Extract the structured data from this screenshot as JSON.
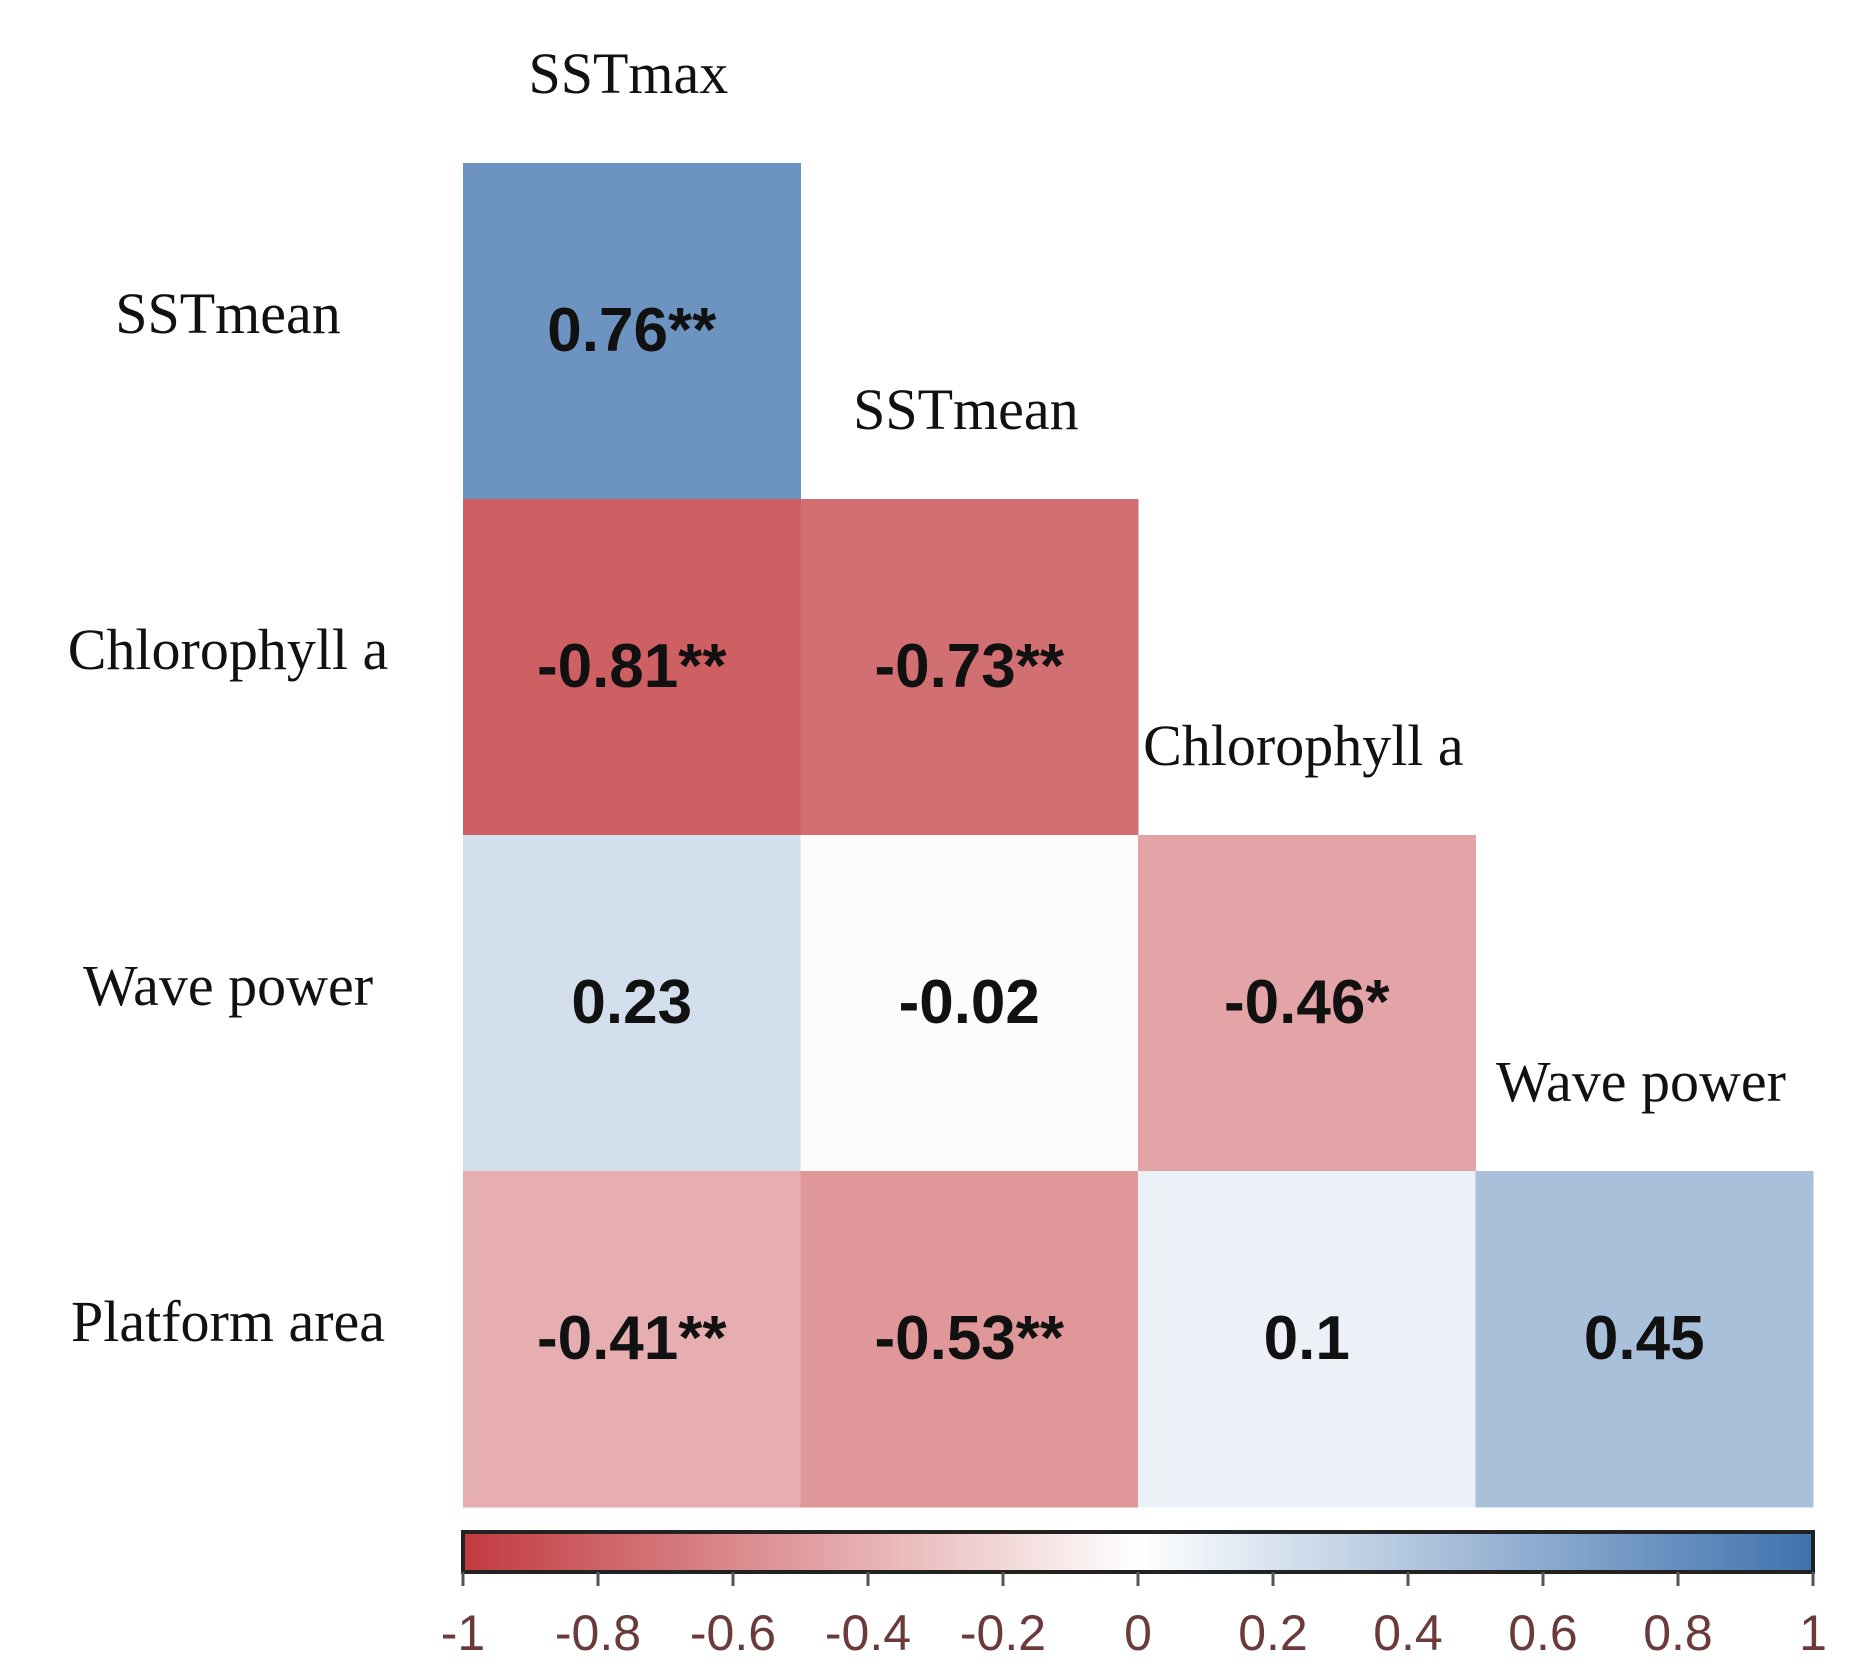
{
  "chart_data": {
    "type": "heatmap",
    "subtype": "lower-triangular correlation matrix",
    "column_labels": [
      "SSTmax",
      "SSTmean",
      "Chlorophyll a",
      "Wave power"
    ],
    "row_labels": [
      "SSTmean",
      "Chlorophyll a",
      "Wave power",
      "Platform area"
    ],
    "cells": [
      {
        "row": 0,
        "col": 0,
        "value": 0.76,
        "label": "0.76**"
      },
      {
        "row": 1,
        "col": 0,
        "value": -0.81,
        "label": "-0.81**"
      },
      {
        "row": 1,
        "col": 1,
        "value": -0.73,
        "label": "-0.73**"
      },
      {
        "row": 2,
        "col": 0,
        "value": 0.23,
        "label": "0.23"
      },
      {
        "row": 2,
        "col": 1,
        "value": -0.02,
        "label": "-0.02"
      },
      {
        "row": 2,
        "col": 2,
        "value": -0.46,
        "label": "-0.46*"
      },
      {
        "row": 3,
        "col": 0,
        "value": -0.41,
        "label": "-0.41**"
      },
      {
        "row": 3,
        "col": 1,
        "value": -0.53,
        "label": "-0.53**"
      },
      {
        "row": 3,
        "col": 2,
        "value": 0.1,
        "label": "0.1"
      },
      {
        "row": 3,
        "col": 3,
        "value": 0.45,
        "label": "0.45"
      }
    ],
    "colorbar": {
      "range": [
        -1,
        1
      ],
      "ticks": [
        -1,
        -0.8,
        -0.6,
        -0.4,
        -0.2,
        0,
        0.2,
        0.4,
        0.6,
        0.8,
        1
      ],
      "tick_labels": [
        "-1",
        "-0.8",
        "-0.6",
        "-0.4",
        "-0.2",
        "0",
        "0.2",
        "0.4",
        "0.6",
        "0.8",
        "1"
      ],
      "colors": {
        "negative": "#c23a3f",
        "neutral": "#ffffff",
        "positive": "#3f72ae"
      },
      "placement": "bottom"
    }
  }
}
